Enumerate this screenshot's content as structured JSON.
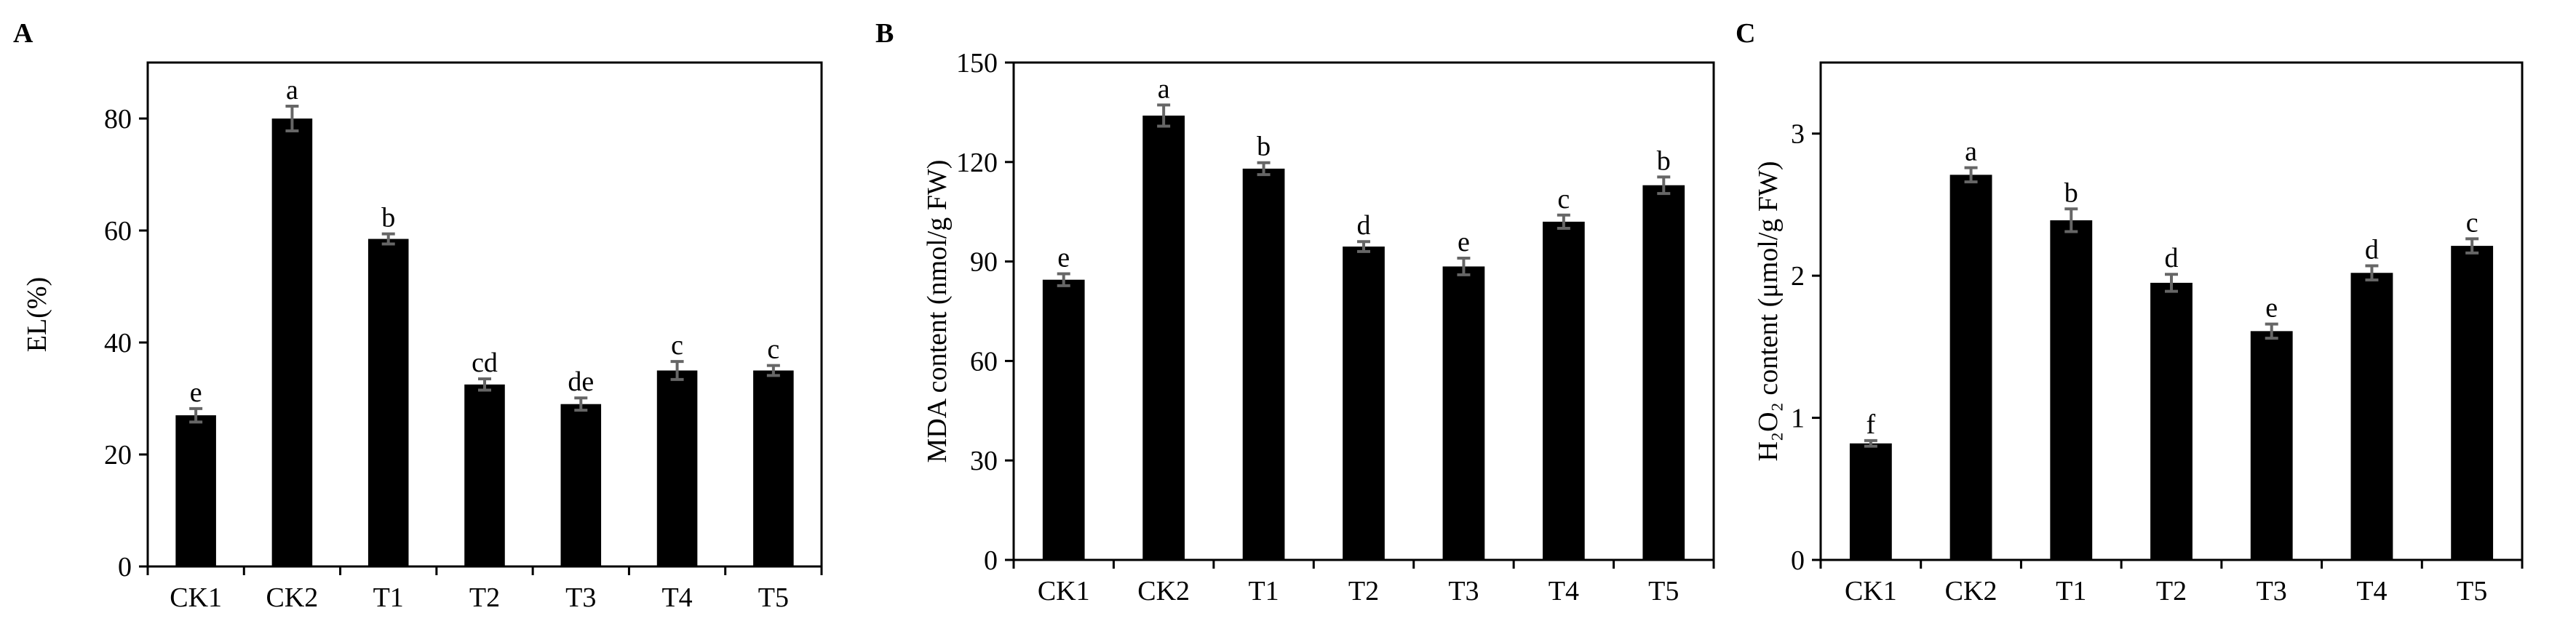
{
  "chart_data": [
    {
      "type": "bar",
      "panel": "A",
      "y_label": "EL(%)",
      "categories": [
        "CK1",
        "CK2",
        "T1",
        "T2",
        "T3",
        "T4",
        "T5"
      ],
      "values": [
        27,
        80,
        58.5,
        32.5,
        29,
        35,
        35
      ],
      "errors": [
        1.2,
        2.2,
        0.9,
        1,
        1.1,
        1.6,
        0.9
      ],
      "letters": [
        "e",
        "a",
        "b",
        "cd",
        "de",
        "c",
        "c"
      ],
      "color": "#000000",
      "error_color": "#666666",
      "ylim": [
        0,
        90
      ],
      "yticks": [
        0,
        20,
        40,
        60,
        80
      ]
    },
    {
      "type": "bar",
      "panel": "B",
      "y_label": "MDA content (nmol/g FW)",
      "categories": [
        "CK1",
        "CK2",
        "T1",
        "T2",
        "T3",
        "T4",
        "T5"
      ],
      "values": [
        84.5,
        134,
        118,
        94.5,
        88.5,
        102,
        113
      ],
      "errors": [
        1.8,
        3.2,
        1.8,
        1.5,
        2.5,
        2,
        2.5
      ],
      "letters": [
        "e",
        "a",
        "b",
        "d",
        "e",
        "c",
        "b"
      ],
      "color": "#000000",
      "error_color": "#666666",
      "ylim": [
        0,
        150
      ],
      "yticks": [
        0,
        30,
        60,
        90,
        120,
        150
      ]
    },
    {
      "type": "bar",
      "panel": "C",
      "y_label": "H₂O₂ content (μmol/g FW)",
      "categories": [
        "CK1",
        "CK2",
        "T1",
        "T2",
        "T3",
        "T4",
        "T5"
      ],
      "values": [
        0.82,
        2.71,
        2.39,
        1.95,
        1.61,
        2.02,
        2.21
      ],
      "errors": [
        0.02,
        0.05,
        0.08,
        0.06,
        0.05,
        0.05,
        0.05
      ],
      "letters": [
        "f",
        "a",
        "b",
        "d",
        "e",
        "d",
        "c"
      ],
      "color": "#000000",
      "error_color": "#666666",
      "ylim": [
        0,
        3.5
      ],
      "yticks": [
        0,
        1,
        2,
        3
      ]
    }
  ]
}
